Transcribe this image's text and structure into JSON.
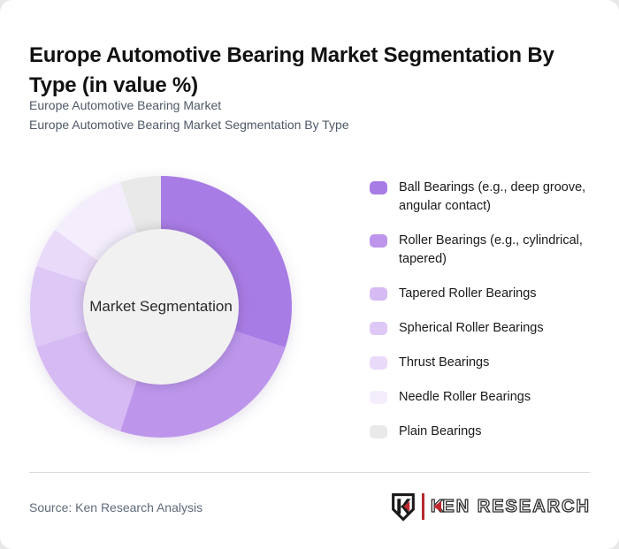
{
  "page": {
    "background": "#e8e8e8",
    "card_background": "#ffffff"
  },
  "header": {
    "title_lines": [
      "Europe Automotive Bearing Market Segmentation By",
      "Type (in value %)"
    ],
    "subtitle_lines": [
      "Europe Automotive Bearing Market",
      "Europe Automotive Bearing Market Segmentation By Type"
    ]
  },
  "chart_data": {
    "type": "pie",
    "style": "donut",
    "title": "Europe Automotive Bearing Market Segmentation By Type (in value %)",
    "center_label": "Market Segmentation",
    "legend_position": "right",
    "start_angle_deg": 0,
    "direction": "clockwise",
    "unit": "%",
    "values_are_estimates": true,
    "segments": [
      {
        "label": "Ball Bearings (e.g., deep groove, angular contact)",
        "value": 30,
        "color": "#a87ce5"
      },
      {
        "label": "Roller Bearings (e.g., cylindrical, tapered)",
        "value": 25,
        "color": "#bd96ec"
      },
      {
        "label": "Tapered Roller Bearings",
        "value": 15,
        "color": "#d6baf3"
      },
      {
        "label": "Spherical Roller Bearings",
        "value": 10,
        "color": "#ddc8f6"
      },
      {
        "label": "Thrust Bearings",
        "value": 5,
        "color": "#e9daf9"
      },
      {
        "label": "Needle Roller Bearings",
        "value": 10,
        "color": "#f4eefc"
      },
      {
        "label": "Plain Bearings",
        "value": 5,
        "color": "#e9e9e9"
      }
    ]
  },
  "footer": {
    "source": "Source: Ken Research Analysis",
    "logo": {
      "letter_k": "K",
      "rest": "EN RESEARCH"
    }
  },
  "colors": {
    "brand_red": "#c1272d",
    "logo_text": "#2e2e2e",
    "title_text": "#111111",
    "subtitle_text": "#4e5866",
    "hole_fill": "#f1f1f1"
  }
}
